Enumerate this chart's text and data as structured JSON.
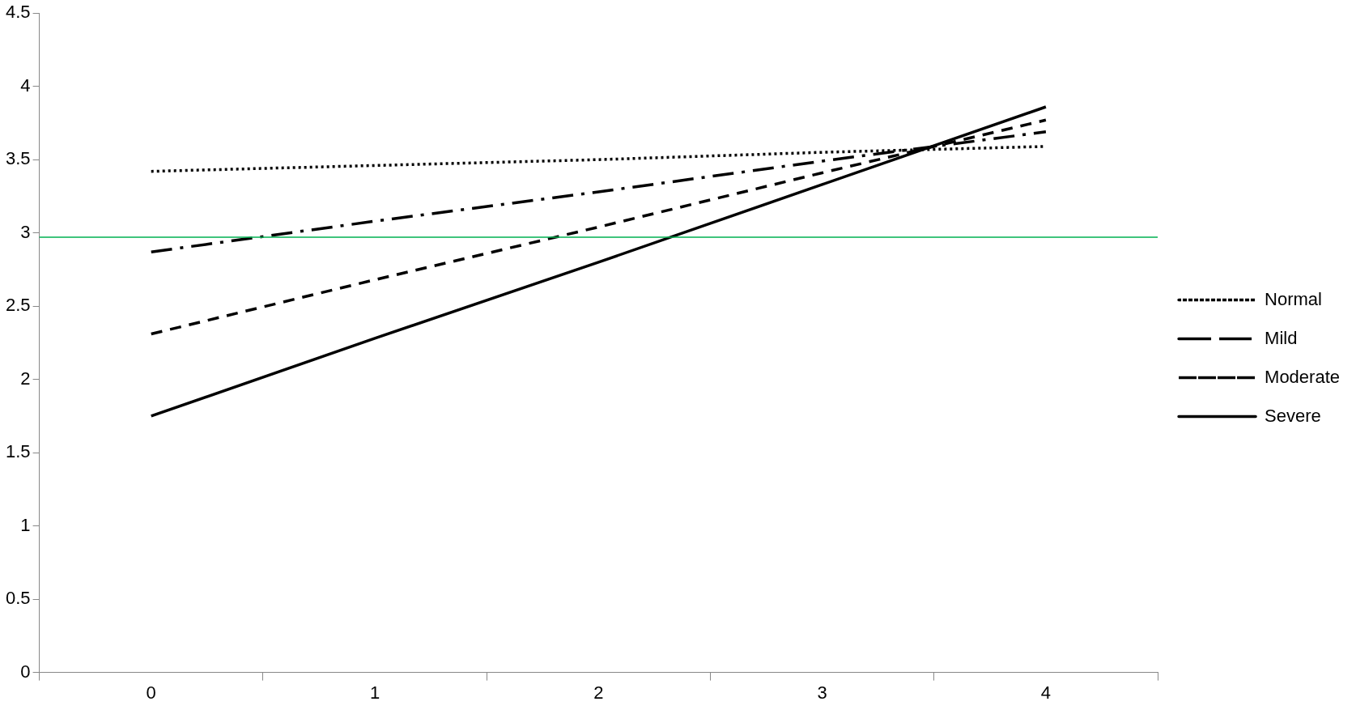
{
  "chart_data": {
    "type": "line",
    "categories": [
      "0",
      "1",
      "2",
      "3",
      "4"
    ],
    "series": [
      {
        "name": "Normal",
        "color": "#000000",
        "line_style": "dotted",
        "values": [
          3.42,
          3.46,
          3.5,
          3.55,
          3.59
        ]
      },
      {
        "name": "Mild",
        "color": "#000000",
        "line_style": "dashdot",
        "values": [
          2.87,
          3.08,
          3.28,
          3.49,
          3.69
        ]
      },
      {
        "name": "Moderate",
        "color": "#000000",
        "line_style": "dashed",
        "values": [
          2.31,
          2.68,
          3.04,
          3.41,
          3.77
        ]
      },
      {
        "name": "Severe",
        "color": "#000000",
        "line_style": "solid",
        "values": [
          1.75,
          2.28,
          2.8,
          3.33,
          3.86
        ]
      }
    ],
    "ylim": [
      0,
      4.5
    ],
    "yticks": [
      0,
      0.5,
      1,
      1.5,
      2,
      2.5,
      3,
      3.5,
      4,
      4.5
    ],
    "ref_lines": [
      {
        "axis": "y",
        "value": 2.97,
        "color": "#00b050"
      }
    ],
    "grid": false,
    "legend": "right",
    "marker": "none"
  }
}
